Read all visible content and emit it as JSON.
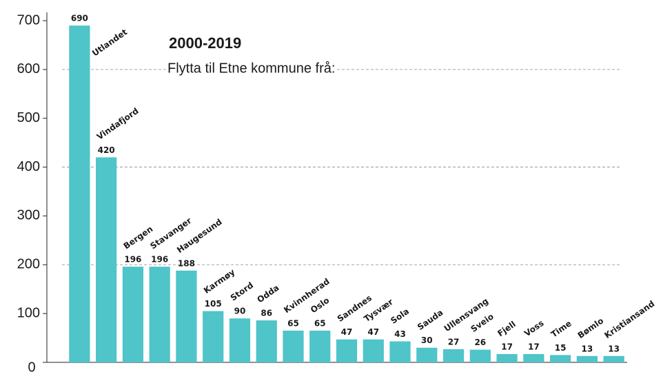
{
  "chart_data": {
    "type": "bar",
    "title": "2000-2019",
    "subtitle": "Flytta til Etne kommune frå:",
    "categories": [
      "Utlandet",
      "Vindafjord",
      "Bergen",
      "Stavanger",
      "Haugesund",
      "Karmøy",
      "Stord",
      "Odda",
      "Kvinnherad",
      "Oslo",
      "Sandnes",
      "Tysvær",
      "Sola",
      "Sauda",
      "Ullensvang",
      "Sveio",
      "Fjell",
      "Voss",
      "Time",
      "Bømlo",
      "Kristiansand"
    ],
    "values": [
      690,
      420,
      196,
      196,
      188,
      105,
      90,
      86,
      65,
      65,
      47,
      47,
      43,
      30,
      27,
      26,
      17,
      17,
      15,
      13,
      13
    ],
    "color": "#4fc4c9",
    "ylim": [
      0,
      700
    ],
    "yticks": [
      0,
      100,
      200,
      300,
      400,
      500,
      600,
      700
    ],
    "gridlines": [
      200,
      400,
      600
    ]
  }
}
